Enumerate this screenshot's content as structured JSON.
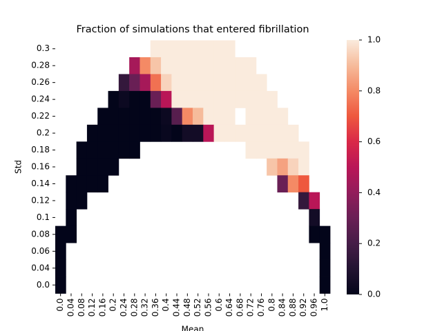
{
  "chart_data": {
    "type": "heatmap",
    "title": "Fraction of simulations that entered fibrillation",
    "x_label": "Mean",
    "y_label": "Std",
    "colormap": "rocket",
    "clim": [
      0,
      1
    ],
    "x_categories": [
      "0.0",
      "0.04",
      "0.08",
      "0.12",
      "0.16",
      "0.2",
      "0.24",
      "0.28",
      "0.32",
      "0.36",
      "0.4",
      "0.44",
      "0.48",
      "0.52",
      "0.56",
      "0.6",
      "0.64",
      "0.68",
      "0.72",
      "0.76",
      "0.8",
      "0.84",
      "0.88",
      "0.92",
      "0.96",
      "1.0"
    ],
    "y_categories": [
      "0.3",
      "0.28",
      "0.26",
      "0.24",
      "0.22",
      "0.2",
      "0.18",
      "0.16",
      "0.14",
      "0.12",
      "0.1",
      "0.08",
      "0.06",
      "0.04",
      "0.0"
    ],
    "values": [
      [
        null,
        null,
        null,
        null,
        null,
        null,
        null,
        null,
        null,
        1,
        1,
        1,
        1,
        1,
        1,
        1,
        1,
        null,
        null,
        null,
        null,
        null,
        null,
        null,
        null,
        null
      ],
      [
        null,
        null,
        null,
        null,
        null,
        null,
        null,
        0.45,
        0.8,
        0.92,
        1,
        1,
        1,
        1,
        1,
        1,
        1,
        1,
        1,
        null,
        null,
        null,
        null,
        null,
        null,
        null
      ],
      [
        null,
        null,
        null,
        null,
        null,
        null,
        0.15,
        0.3,
        0.45,
        0.75,
        0.95,
        1,
        1,
        1,
        1,
        1,
        1,
        1,
        1,
        1,
        null,
        null,
        null,
        null,
        null,
        null
      ],
      [
        null,
        null,
        null,
        null,
        null,
        0,
        0.03,
        0,
        0,
        0.3,
        0.5,
        1,
        1,
        1,
        1,
        1,
        1,
        1,
        1,
        1,
        1,
        null,
        null,
        null,
        null,
        null
      ],
      [
        null,
        null,
        null,
        null,
        0,
        0,
        0,
        0,
        0,
        0,
        0.03,
        0.25,
        0.8,
        0.9,
        1,
        1,
        1,
        null,
        1,
        1,
        1,
        1,
        null,
        null,
        null,
        null
      ],
      [
        null,
        null,
        null,
        0,
        0,
        0,
        0,
        0,
        0,
        0,
        0.02,
        0,
        0.05,
        0.05,
        0.5,
        1,
        1,
        1,
        1,
        1,
        1,
        1,
        1,
        null,
        null,
        null
      ],
      [
        null,
        null,
        0,
        0,
        0,
        0,
        0,
        0,
        null,
        null,
        null,
        null,
        null,
        null,
        null,
        null,
        null,
        null,
        1,
        1,
        1,
        1,
        1,
        1,
        null,
        null
      ],
      [
        null,
        null,
        0,
        0,
        0,
        0,
        null,
        null,
        null,
        null,
        null,
        null,
        null,
        null,
        null,
        null,
        null,
        null,
        null,
        null,
        0.92,
        0.85,
        0.95,
        1,
        null,
        null
      ],
      [
        null,
        0,
        0,
        0,
        0,
        null,
        null,
        null,
        null,
        null,
        null,
        null,
        null,
        null,
        null,
        null,
        null,
        null,
        null,
        null,
        null,
        0.3,
        0.8,
        0.7,
        null,
        null
      ],
      [
        null,
        0,
        0,
        null,
        null,
        null,
        null,
        null,
        null,
        null,
        null,
        null,
        null,
        null,
        null,
        null,
        null,
        null,
        null,
        null,
        null,
        null,
        null,
        0.15,
        0.5,
        null
      ],
      [
        null,
        0,
        null,
        null,
        null,
        null,
        null,
        null,
        null,
        null,
        null,
        null,
        null,
        null,
        null,
        null,
        null,
        null,
        null,
        null,
        null,
        null,
        null,
        null,
        0.05,
        null
      ],
      [
        0,
        0,
        null,
        null,
        null,
        null,
        null,
        null,
        null,
        null,
        null,
        null,
        null,
        null,
        null,
        null,
        null,
        null,
        null,
        null,
        null,
        null,
        null,
        null,
        0,
        0
      ],
      [
        0,
        null,
        null,
        null,
        null,
        null,
        null,
        null,
        null,
        null,
        null,
        null,
        null,
        null,
        null,
        null,
        null,
        null,
        null,
        null,
        null,
        null,
        null,
        null,
        null,
        0
      ],
      [
        0,
        null,
        null,
        null,
        null,
        null,
        null,
        null,
        null,
        null,
        null,
        null,
        null,
        null,
        null,
        null,
        null,
        null,
        null,
        null,
        null,
        null,
        null,
        null,
        null,
        0
      ],
      [
        0,
        null,
        null,
        null,
        null,
        null,
        null,
        null,
        null,
        null,
        null,
        null,
        null,
        null,
        null,
        null,
        null,
        null,
        null,
        null,
        null,
        null,
        null,
        null,
        null,
        0
      ]
    ],
    "colorbar_ticks": [
      {
        "value": 0,
        "label": "0.0"
      },
      0.2,
      0.4,
      0.6,
      0.8,
      {
        "value": 1,
        "label": "1.0"
      }
    ]
  }
}
